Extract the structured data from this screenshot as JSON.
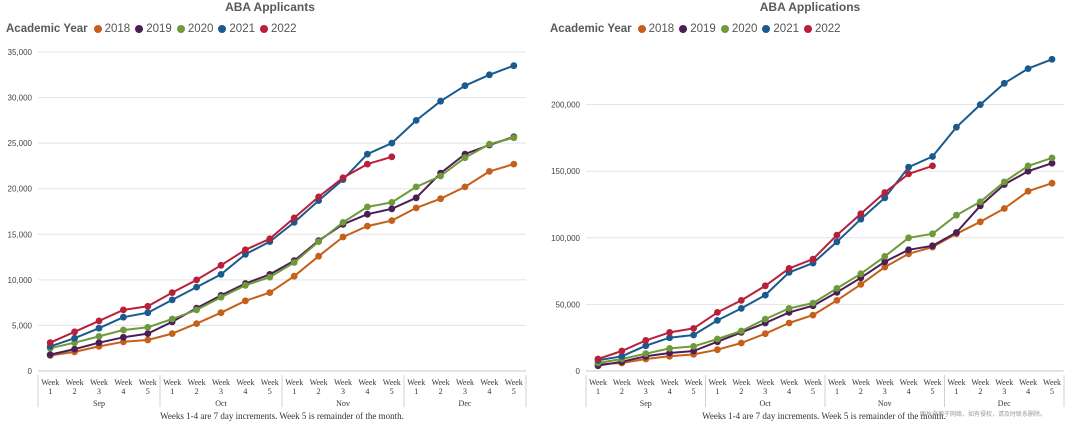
{
  "chart_data": [
    {
      "type": "line",
      "title": "ABA Applicants",
      "legend_title": "Academic Year",
      "legend_position": "top-left",
      "grid": true,
      "ylim": [
        0,
        35000
      ],
      "yticks": [
        0,
        5000,
        10000,
        15000,
        20000,
        25000,
        30000,
        35000
      ],
      "ytick_labels": [
        "0",
        "5,000",
        "10,000",
        "15,000",
        "20,000",
        "25,000",
        "30,000",
        "35,000"
      ],
      "week_labels": [
        "Week 1",
        "Week 2",
        "Week 3",
        "Week 4",
        "Week 5",
        "Week 1",
        "Week 2",
        "Week 3",
        "Week 4",
        "Week 5",
        "Week 1",
        "Week 2",
        "Week 3",
        "Week 4",
        "Week 5",
        "Week 1",
        "Week 2",
        "Week 3",
        "Week 4",
        "Week 5"
      ],
      "months": [
        "Sep",
        "Oct",
        "Nov",
        "Dec"
      ],
      "footnote": "Weeks 1-4 are 7 day increments. Week 5 is remainder of the month.",
      "series": [
        {
          "name": "2018",
          "color": "#c5601a",
          "values": [
            1700,
            2100,
            2700,
            3200,
            3400,
            4100,
            5200,
            6400,
            7700,
            8600,
            10400,
            12600,
            14700,
            15900,
            16500,
            17900,
            18900,
            20200,
            21900,
            22700
          ]
        },
        {
          "name": "2019",
          "color": "#4b1e56",
          "values": [
            1800,
            2400,
            3100,
            3700,
            4100,
            5400,
            6900,
            8300,
            9600,
            10600,
            12100,
            14300,
            16100,
            17200,
            17800,
            19000,
            21700,
            23800,
            24800,
            25700
          ]
        },
        {
          "name": "2020",
          "color": "#6e9a3a",
          "values": [
            2500,
            3100,
            3800,
            4500,
            4800,
            5700,
            6700,
            8100,
            9400,
            10300,
            11900,
            14200,
            16300,
            18000,
            18500,
            20200,
            21400,
            23400,
            24900,
            25600
          ]
        },
        {
          "name": "2021",
          "color": "#1a5a8f",
          "values": [
            2700,
            3600,
            4700,
            5900,
            6400,
            7800,
            9200,
            10600,
            12800,
            14200,
            16300,
            18700,
            21000,
            23800,
            25000,
            27500,
            29600,
            31300,
            32500,
            33500
          ]
        },
        {
          "name": "2022",
          "color": "#b8203a",
          "values": [
            3100,
            4300,
            5500,
            6700,
            7100,
            8600,
            10000,
            11600,
            13300,
            14500,
            16800,
            19100,
            21200,
            22700,
            23500
          ]
        }
      ]
    },
    {
      "type": "line",
      "title": "ABA Applications",
      "legend_title": "Academic Year",
      "legend_position": "top-left",
      "grid": true,
      "ylim": [
        0,
        250000
      ],
      "yticks": [
        0,
        50000,
        100000,
        150000,
        200000
      ],
      "ytick_labels": [
        "0",
        "50,000",
        "100,000",
        "150,000",
        "200,000"
      ],
      "week_labels": [
        "Week 1",
        "Week 2",
        "Week 3",
        "Week 4",
        "Week 5",
        "Week 1",
        "Week 2",
        "Week 3",
        "Week 4",
        "Week 5",
        "Week 1",
        "Week 2",
        "Week 3",
        "Week 4",
        "Week 5",
        "Week 1",
        "Week 2",
        "Week 3",
        "Week 4",
        "Week 5"
      ],
      "months": [
        "Sep",
        "Oct",
        "Nov",
        "Dec"
      ],
      "footnote": "Weeks 1-4 are 7 day increments. Week 5 is remainder of the month.",
      "series": [
        {
          "name": "2018",
          "color": "#c5601a",
          "values": [
            5000,
            6000,
            9000,
            11000,
            12500,
            16000,
            21000,
            28000,
            36000,
            42000,
            53000,
            65000,
            78000,
            88000,
            93000,
            103000,
            112000,
            122000,
            135000,
            141000
          ]
        },
        {
          "name": "2019",
          "color": "#4b1e56",
          "values": [
            4000,
            7000,
            11000,
            13500,
            15000,
            22000,
            29000,
            36000,
            44000,
            49000,
            59000,
            70000,
            82000,
            91000,
            94000,
            104000,
            124000,
            140000,
            150000,
            156000
          ]
        },
        {
          "name": "2020",
          "color": "#6e9a3a",
          "values": [
            6000,
            9000,
            13000,
            17000,
            18500,
            24000,
            30000,
            39000,
            47000,
            51000,
            62000,
            73000,
            86000,
            100000,
            103000,
            117000,
            127000,
            142000,
            154000,
            160000
          ]
        },
        {
          "name": "2021",
          "color": "#1a5a8f",
          "values": [
            8000,
            11000,
            19000,
            25000,
            27000,
            38000,
            47000,
            57000,
            74000,
            81000,
            97000,
            114000,
            130000,
            153000,
            161000,
            183000,
            200000,
            216000,
            227000,
            234000
          ]
        },
        {
          "name": "2022",
          "color": "#b8203a",
          "values": [
            9000,
            15000,
            23000,
            29000,
            32000,
            44000,
            53000,
            64000,
            77000,
            84000,
            102000,
            118000,
            134000,
            148000,
            154000
          ]
        }
      ]
    }
  ],
  "watermark": "图片来源于网络，如有侵权，请及时联系删除。"
}
